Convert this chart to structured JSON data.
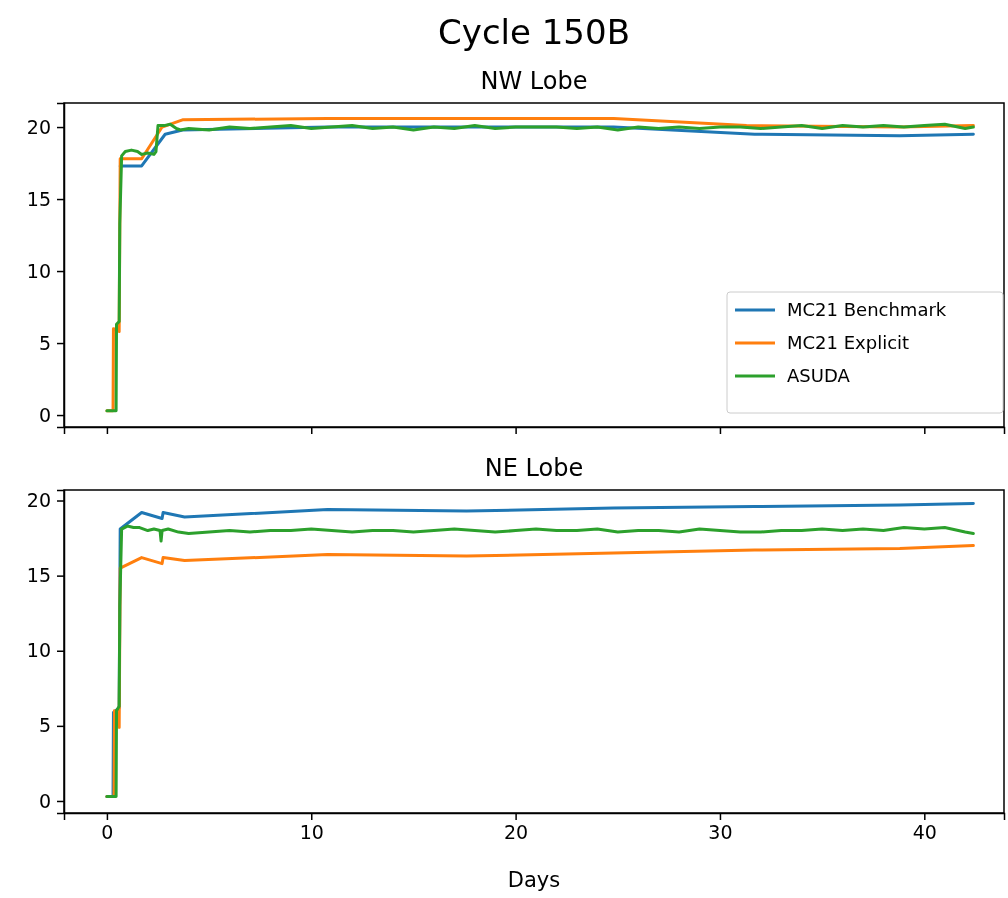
{
  "chart_data": [
    {
      "type": "line",
      "title": "Cycle 150B",
      "subtitle": "NW Lobe",
      "xlim": [
        -2.1,
        43.9
      ],
      "xticks": [
        0,
        10,
        20,
        30,
        40
      ],
      "ylim": [
        -0.83,
        21.67
      ],
      "yticks": [
        0,
        5,
        10,
        15,
        20
      ],
      "tick_labels": "y",
      "legend": "bottom right",
      "grid": false,
      "line_style": "solid",
      "marker": "none",
      "series": [
        {
          "name": "MC21 Benchmark",
          "color": "#1f77b4",
          "x": [
            0.65,
            1.7,
            2.85,
            3.7,
            10.8,
            24.8,
            31.7,
            38.8,
            42.4
          ],
          "values": [
            17.3,
            17.3,
            19.5,
            19.8,
            20.0,
            20.0,
            19.5,
            19.4,
            19.5
          ]
        },
        {
          "name": "MC21 Explicit",
          "color": "#ff7f0e",
          "x": [
            0,
            0.3,
            0.32,
            0.6,
            0.65,
            1.7,
            2.7,
            3.7,
            10.8,
            24.8,
            31.3,
            38.8,
            42.4
          ],
          "values": [
            0.3,
            0.3,
            6.0,
            5.8,
            17.8,
            17.8,
            20.0,
            20.5,
            20.6,
            20.6,
            20.1,
            20.0,
            20.1
          ]
        },
        {
          "name": "ASUDA",
          "color": "#2ca02c",
          "x": [
            0,
            0.45,
            0.47,
            0.6,
            0.63,
            0.72,
            0.9,
            1.2,
            1.5,
            1.7,
            2.0,
            2.3,
            2.4,
            2.5,
            2.8,
            3.1,
            3.4,
            3.6,
            4,
            5,
            6,
            7,
            8,
            9,
            10,
            11,
            12,
            13,
            14,
            15,
            16,
            17,
            18,
            19,
            20,
            21,
            22,
            23,
            24,
            25,
            26,
            27,
            28,
            29,
            30,
            31,
            32,
            33,
            34,
            35,
            36,
            37,
            38,
            39,
            40,
            41,
            42,
            42.4
          ],
          "values": [
            0.3,
            0.3,
            6.3,
            6.5,
            13.3,
            18.0,
            18.3,
            18.4,
            18.3,
            18.1,
            18.2,
            18.1,
            18.3,
            20.1,
            20.1,
            20.2,
            19.9,
            19.8,
            19.9,
            19.8,
            20.0,
            19.9,
            20.0,
            20.1,
            19.9,
            20.0,
            20.1,
            19.9,
            20.0,
            19.8,
            20.0,
            19.9,
            20.1,
            19.9,
            20.0,
            20.0,
            20.0,
            19.9,
            20.0,
            19.8,
            20.0,
            19.9,
            20.0,
            19.9,
            20.0,
            20.0,
            19.9,
            20.0,
            20.1,
            19.9,
            20.1,
            20.0,
            20.1,
            20.0,
            20.1,
            20.2,
            19.9,
            20.0
          ]
        }
      ]
    },
    {
      "type": "line",
      "title": "NE Lobe",
      "xlabel": "Days",
      "xlim": [
        -2.1,
        43.9
      ],
      "xticks": [
        0,
        10,
        20,
        30,
        40
      ],
      "ylim": [
        -0.8,
        20.7
      ],
      "yticks": [
        0,
        5,
        10,
        15,
        20
      ],
      "grid": false,
      "line_style": "solid",
      "marker": "none",
      "series": [
        {
          "color": "#1f77b4",
          "x": [
            0,
            0.3,
            0.32,
            0.6,
            0.65,
            1.7,
            2.7,
            2.75,
            3.8,
            10.8,
            17.6,
            24.8,
            31.7,
            38.8,
            42.4
          ],
          "values": [
            0.3,
            0.3,
            5.9,
            6.2,
            18.1,
            19.2,
            18.8,
            19.2,
            18.9,
            19.4,
            19.3,
            19.5,
            19.6,
            19.7,
            19.8
          ]
        },
        {
          "color": "#ff7f0e",
          "x": [
            0,
            0.35,
            0.37,
            0.6,
            0.65,
            1.7,
            2.7,
            2.75,
            3.8,
            10.8,
            17.6,
            24.8,
            31.7,
            38.8,
            42.4
          ],
          "values": [
            0.3,
            0.3,
            6.0,
            4.9,
            15.5,
            16.2,
            15.8,
            16.2,
            16.0,
            16.4,
            16.3,
            16.5,
            16.7,
            16.8,
            17.0
          ]
        },
        {
          "color": "#2ca02c",
          "x": [
            0,
            0.45,
            0.47,
            0.6,
            0.63,
            0.72,
            1.0,
            1.3,
            1.6,
            2.0,
            2.3,
            2.6,
            2.65,
            2.7,
            3.0,
            3.5,
            4,
            5,
            6,
            7,
            8,
            9,
            10,
            11,
            12,
            13,
            14,
            15,
            16,
            17,
            18,
            19,
            20,
            21,
            22,
            23,
            24,
            25,
            26,
            27,
            28,
            29,
            30,
            31,
            32,
            33,
            34,
            35,
            36,
            37,
            38,
            39,
            40,
            41,
            42,
            42.4
          ],
          "values": [
            0.3,
            0.3,
            6.0,
            6.3,
            13.0,
            18.1,
            18.3,
            18.2,
            18.2,
            18.0,
            18.1,
            18.0,
            17.3,
            18.0,
            18.1,
            17.9,
            17.8,
            17.9,
            18.0,
            17.9,
            18.0,
            18.0,
            18.1,
            18.0,
            17.9,
            18.0,
            18.0,
            17.9,
            18.0,
            18.1,
            18.0,
            17.9,
            18.0,
            18.1,
            18.0,
            18.0,
            18.1,
            17.9,
            18.0,
            18.0,
            17.9,
            18.1,
            18.0,
            17.9,
            17.9,
            18.0,
            18.0,
            18.1,
            18.0,
            18.1,
            18.0,
            18.2,
            18.1,
            18.2,
            17.9,
            17.8
          ]
        }
      ]
    }
  ]
}
